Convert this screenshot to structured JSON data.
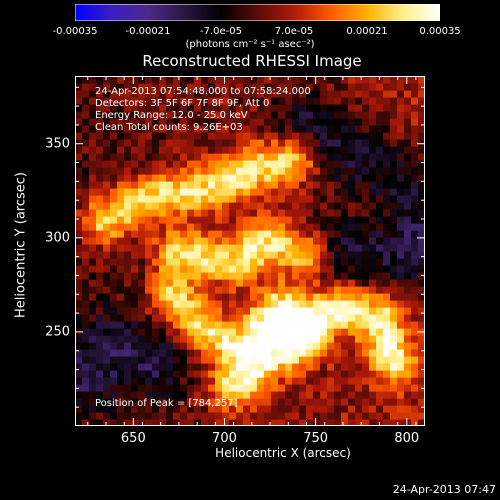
{
  "colorbar": {
    "tick_labels": [
      "-0.00035",
      "-0.00021",
      "-7.0e-05",
      "7.0e-05",
      "0.00021",
      "0.00035"
    ],
    "units": "(photons cm⁻² s⁻¹ asec⁻²)",
    "stops": [
      "#0000ff",
      "#3a1fbf",
      "#4b2a8a",
      "#2a1640",
      "#000000",
      "#5a0c08",
      "#b01a08",
      "#ff5a00",
      "#ffb000",
      "#fff08a",
      "#ffffff"
    ]
  },
  "plot": {
    "title": "Reconstructed RHESSI Image",
    "annotations": [
      "24-Apr-2013 07:54:48.000 to 07:58:24.000",
      "Detectors: 3F 5F 6F 7F 8F 9F, Att 0",
      "Energy Range: 12.0 - 25.0 keV",
      "Clean     Total counts: 9.26E+03"
    ],
    "peak_text": "Position of Peak = [784,257]"
  },
  "chart_data": {
    "type": "heatmap",
    "title": "Reconstructed RHESSI Image",
    "xlabel": "Heliocentric X (arcsec)",
    "ylabel": "Heliocentric Y (arcsec)",
    "xlim": [
      618,
      810
    ],
    "ylim": [
      200,
      386
    ],
    "x_ticks": [
      650,
      700,
      750,
      800
    ],
    "y_ticks": [
      250,
      300,
      350
    ],
    "color_range": [
      -0.00035,
      0.00035
    ],
    "peak_position": [
      784,
      257
    ],
    "bright_ridges": [
      [
        [
          635,
          310
        ],
        [
          660,
          322
        ],
        [
          690,
          326
        ],
        [
          720,
          338
        ],
        [
          738,
          343
        ]
      ],
      [
        [
          675,
          292
        ],
        [
          705,
          288
        ],
        [
          725,
          298
        ],
        [
          745,
          292
        ]
      ],
      [
        [
          672,
          268
        ],
        [
          690,
          250
        ],
        [
          710,
          243
        ],
        [
          728,
          262
        ],
        [
          742,
          248
        ]
      ],
      [
        [
          705,
          222
        ],
        [
          725,
          236
        ],
        [
          745,
          258
        ],
        [
          765,
          262
        ],
        [
          785,
          257
        ],
        [
          792,
          236
        ]
      ]
    ],
    "dark_regions": [
      [
        [
          745,
          360
        ],
        [
          770,
          345
        ],
        [
          800,
          330
        ],
        [
          810,
          310
        ]
      ],
      [
        [
          625,
          230
        ],
        [
          640,
          240
        ],
        [
          660,
          235
        ]
      ],
      [
        [
          760,
          295
        ],
        [
          800,
          290
        ]
      ]
    ]
  },
  "footer": {
    "timestamp": "24-Apr-2013 07:47"
  }
}
